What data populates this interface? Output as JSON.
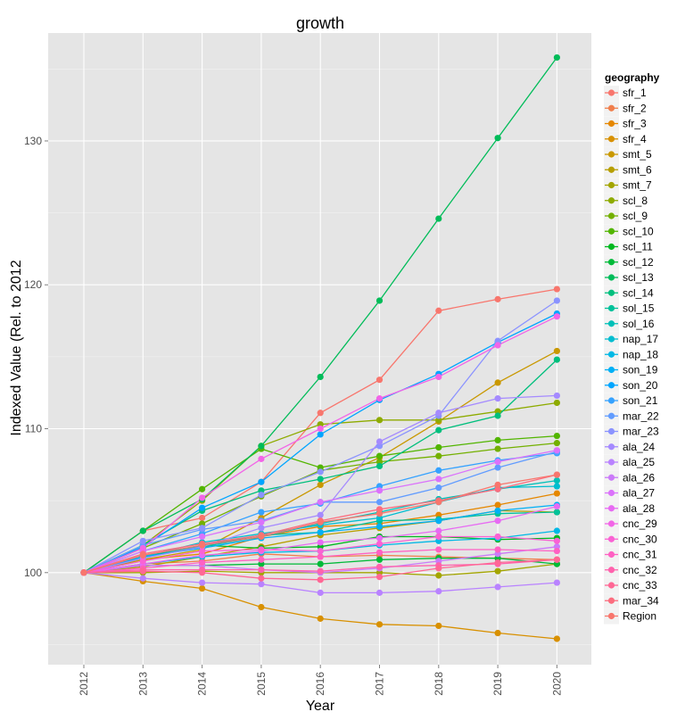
{
  "chart_data": {
    "type": "line",
    "title": "growth",
    "xlabel": "Year",
    "ylabel": "Indexed Value (Rel. to 2012",
    "x": [
      "2012",
      "2013",
      "2014",
      "2015",
      "2016",
      "2017",
      "2018",
      "2019",
      "2020"
    ],
    "y_ticks": [
      "100",
      "110",
      "120",
      "130"
    ],
    "ylim": [
      93.6,
      137.5
    ],
    "grid": true,
    "legend": {
      "title": "geography",
      "position": "right"
    },
    "series": [
      {
        "name": "sfr_1",
        "color": "#F8766D",
        "values": [
          100,
          102.9,
          103.8,
          106.3,
          111.1,
          113.4,
          118.2,
          119.0,
          119.7
        ]
      },
      {
        "name": "sfr_2",
        "color": "#F07E4C",
        "values": [
          100,
          100.6,
          100.8,
          101.3,
          101.1,
          101.2,
          101.1,
          101.0,
          100.9
        ]
      },
      {
        "name": "sfr_3",
        "color": "#E58700",
        "values": [
          100,
          100.9,
          101.3,
          102.5,
          103.2,
          103.4,
          104.0,
          104.7,
          105.5
        ]
      },
      {
        "name": "sfr_4",
        "color": "#D89000",
        "values": [
          100,
          99.4,
          98.9,
          97.6,
          96.8,
          96.4,
          96.3,
          95.8,
          95.4
        ]
      },
      {
        "name": "smt_5",
        "color": "#C99800",
        "values": [
          100,
          100.9,
          101.6,
          103.8,
          106.1,
          108.0,
          110.5,
          113.2,
          115.4
        ]
      },
      {
        "name": "smt_6",
        "color": "#B79F00",
        "values": [
          100,
          100.4,
          101.1,
          101.8,
          102.6,
          103.1,
          103.6,
          104.3,
          104.2
        ]
      },
      {
        "name": "smt_7",
        "color": "#A3A500",
        "values": [
          100,
          100.0,
          100.1,
          100.0,
          100.0,
          100.0,
          99.8,
          100.1,
          100.6
        ]
      },
      {
        "name": "scl_8",
        "color": "#8EAB00",
        "values": [
          100,
          101.9,
          105.0,
          108.8,
          110.3,
          110.6,
          110.6,
          111.2,
          111.8
        ]
      },
      {
        "name": "scl_9",
        "color": "#73B000",
        "values": [
          100,
          101.7,
          103.4,
          105.3,
          107.1,
          107.7,
          108.1,
          108.6,
          109.0
        ]
      },
      {
        "name": "scl_10",
        "color": "#52B500",
        "values": [
          100,
          102.9,
          105.8,
          108.6,
          107.3,
          108.1,
          108.7,
          109.2,
          109.5
        ]
      },
      {
        "name": "scl_11",
        "color": "#00B81F",
        "values": [
          100,
          101.1,
          101.9,
          101.7,
          101.8,
          102.5,
          102.5,
          102.3,
          102.4
        ]
      },
      {
        "name": "scl_12",
        "color": "#00BA38",
        "values": [
          100,
          100.5,
          100.5,
          100.6,
          100.6,
          100.9,
          101.0,
          101.0,
          100.6
        ]
      },
      {
        "name": "scl_13",
        "color": "#00BC59",
        "values": [
          100,
          102.9,
          105.1,
          108.8,
          113.6,
          118.9,
          124.6,
          130.2,
          135.8
        ]
      },
      {
        "name": "scl_14",
        "color": "#00BF7D",
        "values": [
          100,
          101.9,
          104.3,
          105.7,
          106.5,
          107.4,
          109.9,
          110.9,
          114.8
        ]
      },
      {
        "name": "sol_15",
        "color": "#00C19A",
        "values": [
          100,
          101.0,
          101.9,
          102.6,
          102.8,
          103.6,
          103.7,
          104.1,
          104.2
        ]
      },
      {
        "name": "sol_16",
        "color": "#00C0B8",
        "values": [
          100,
          101.2,
          101.8,
          102.5,
          103.4,
          104.2,
          105.1,
          105.8,
          106.4
        ]
      },
      {
        "name": "nap_17",
        "color": "#00BDD0",
        "values": [
          100,
          101.1,
          102.1,
          102.7,
          103.3,
          103.8,
          104.9,
          105.9,
          106.0
        ]
      },
      {
        "name": "nap_18",
        "color": "#00B8E5",
        "values": [
          100,
          100.6,
          101.1,
          101.4,
          101.5,
          101.9,
          102.2,
          102.4,
          102.9
        ]
      },
      {
        "name": "son_19",
        "color": "#00B0F6",
        "values": [
          100,
          101.1,
          101.7,
          102.4,
          102.8,
          103.2,
          103.6,
          104.3,
          104.7
        ]
      },
      {
        "name": "son_20",
        "color": "#00A5FF",
        "values": [
          100,
          101.8,
          104.5,
          106.3,
          109.6,
          112.0,
          113.8,
          116.0,
          118.0
        ]
      },
      {
        "name": "son_21",
        "color": "#35A2FF",
        "values": [
          100,
          101.5,
          102.7,
          104.2,
          104.8,
          106.0,
          107.1,
          107.8,
          108.3
        ]
      },
      {
        "name": "mar_22",
        "color": "#619CFF",
        "values": [
          100,
          101.9,
          103.0,
          103.6,
          104.9,
          104.9,
          105.9,
          107.3,
          108.4
        ]
      },
      {
        "name": "mar_23",
        "color": "#8B93FF",
        "values": [
          100,
          102.2,
          103.1,
          105.4,
          107.0,
          108.8,
          110.9,
          116.1,
          118.9
        ]
      },
      {
        "name": "ala_24",
        "color": "#A58AFF",
        "values": [
          100,
          101.0,
          101.8,
          103.1,
          104.0,
          109.1,
          111.1,
          112.1,
          112.3
        ]
      },
      {
        "name": "ala_25",
        "color": "#B983FF",
        "values": [
          100,
          99.6,
          99.3,
          99.2,
          98.6,
          98.6,
          98.7,
          99.0,
          99.3
        ]
      },
      {
        "name": "ala_26",
        "color": "#CB7BF9",
        "values": [
          100,
          100.5,
          100.5,
          100.2,
          100.0,
          100.3,
          100.8,
          101.3,
          101.8
        ]
      },
      {
        "name": "ala_27",
        "color": "#DB72FB",
        "values": [
          100,
          101.5,
          102.5,
          103.5,
          104.9,
          105.7,
          106.5,
          107.7,
          108.5
        ]
      },
      {
        "name": "ala_28",
        "color": "#E76BF3",
        "values": [
          100,
          100.6,
          101.2,
          101.5,
          102.1,
          102.4,
          102.9,
          103.6,
          104.6
        ]
      },
      {
        "name": "cnc_29",
        "color": "#F265E7",
        "values": [
          100,
          101.7,
          105.2,
          107.9,
          110.0,
          112.1,
          113.6,
          115.8,
          117.8
        ]
      },
      {
        "name": "cnc_30",
        "color": "#FA62D4",
        "values": [
          100,
          100.8,
          101.5,
          101.6,
          101.5,
          102.0,
          102.5,
          102.5,
          102.2
        ]
      },
      {
        "name": "cnc_31",
        "color": "#FF61C3",
        "values": [
          100,
          100.3,
          100.7,
          100.9,
          101.1,
          101.4,
          101.6,
          101.6,
          101.5
        ]
      },
      {
        "name": "cnc_32",
        "color": "#FF62AD",
        "values": [
          100,
          100.2,
          100.2,
          100.2,
          100.1,
          100.4,
          100.5,
          100.6,
          100.9
        ]
      },
      {
        "name": "cnc_33",
        "color": "#FF6795",
        "values": [
          100,
          100.1,
          100.0,
          99.6,
          99.5,
          99.7,
          100.3,
          100.7,
          100.9
        ]
      },
      {
        "name": "mar_34",
        "color": "#FC6D7F",
        "values": [
          100,
          101.3,
          102.0,
          102.6,
          103.6,
          104.4,
          105.0,
          105.8,
          106.8
        ]
      },
      {
        "name": "Region",
        "color": "#F8766D",
        "values": [
          100,
          101.2,
          101.9,
          102.5,
          103.5,
          104.1,
          104.9,
          106.1,
          106.8
        ]
      }
    ]
  }
}
